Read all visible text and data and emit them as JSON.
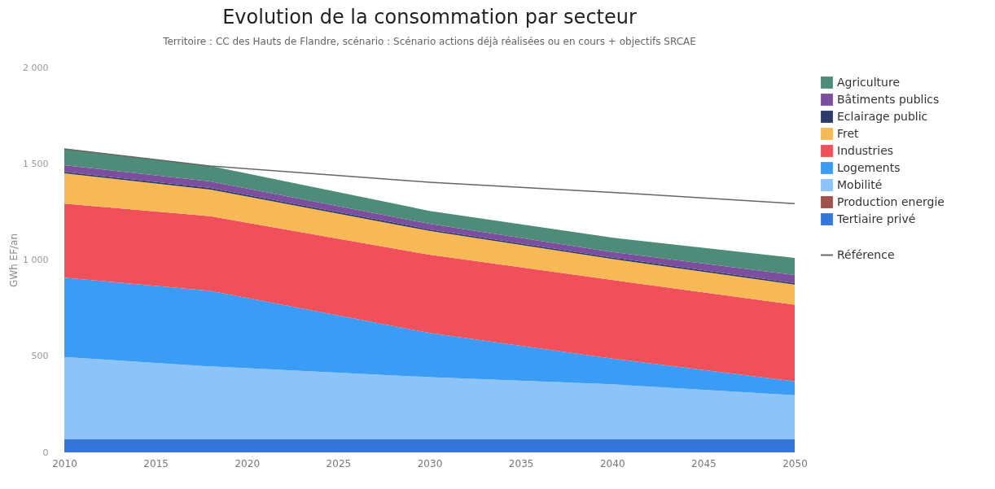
{
  "chart_data": {
    "type": "area",
    "title": "Evolution de la consommation par secteur",
    "subtitle": "Territoire : CC des Hauts de Flandre, scénario : Scénario actions déjà réalisées ou en cours + objectifs SRCAE",
    "ylabel": "GWh EF/an",
    "x": [
      2010,
      2018,
      2030,
      2040,
      2050
    ],
    "stacked": true,
    "series": [
      {
        "name": "Tertiaire privé",
        "color": "#3477db",
        "values": [
          70,
          70,
          70,
          70,
          70
        ]
      },
      {
        "name": "Production energie",
        "color": "#a0524d",
        "values": [
          null,
          null,
          null,
          null,
          null
        ]
      },
      {
        "name": "Mobilité",
        "color": "#8cc3f8",
        "values": [
          426,
          377,
          321,
          284,
          227
        ]
      },
      {
        "name": "Logements",
        "color": "#3b9cf5",
        "values": [
          412,
          392,
          229,
          133,
          72
        ]
      },
      {
        "name": "Industries",
        "color": "#f0505a",
        "values": [
          385,
          388,
          407,
          409,
          398
        ]
      },
      {
        "name": "Fret",
        "color": "#f7b955",
        "values": [
          157,
          139,
          124,
          109,
          105
        ]
      },
      {
        "name": "Eclairage public",
        "color": "#2b3a67",
        "values": [
          8,
          8,
          8,
          8,
          8
        ]
      },
      {
        "name": "Bâtiments publics",
        "color": "#7b4f9d",
        "values": [
          35,
          34,
          29,
          28,
          42
        ]
      },
      {
        "name": "Agriculture",
        "color": "#4e8c79",
        "values": [
          85,
          80,
          67,
          75,
          89
        ]
      },
      {
        "name": "Référence",
        "type": "line",
        "color": "#666666",
        "values": [
          1577,
          1488,
          1404,
          1351,
          1293
        ]
      }
    ],
    "xlim": [
      2010,
      2050
    ],
    "xticks": [
      2010,
      2015,
      2020,
      2025,
      2030,
      2035,
      2040,
      2045,
      2050
    ],
    "ylim": [
      0,
      2000
    ],
    "yticks": [
      0,
      {
        "value": 500,
        "label": "500"
      },
      {
        "value": 1000,
        "label": "1 000"
      },
      {
        "value": 1500,
        "label": "1 500"
      },
      {
        "value": 2000,
        "label": "2 000"
      }
    ],
    "grid": false,
    "legend": "right"
  }
}
